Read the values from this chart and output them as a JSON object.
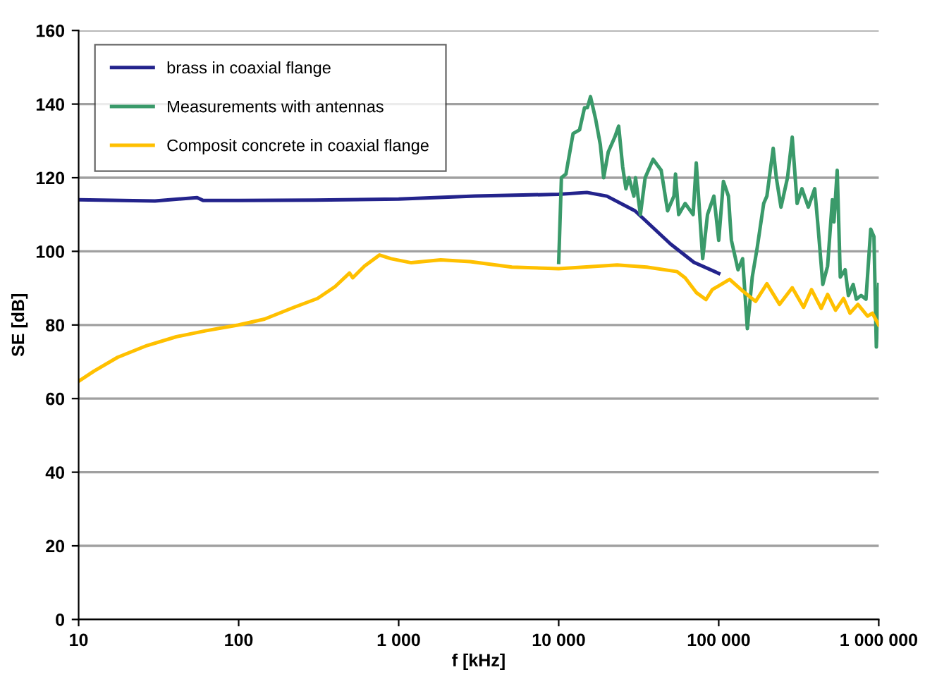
{
  "chart_data": {
    "type": "line",
    "xlabel": "f [kHz]",
    "ylabel": "SE [dB]",
    "log": "x",
    "grid": "y",
    "legend": "top left",
    "xlim": [
      10,
      1000000
    ],
    "ylim": [
      0,
      160
    ],
    "xticks": [
      10,
      100,
      {
        "value": 1000,
        "label": "1 000"
      },
      {
        "value": 10000,
        "label": "10 000"
      },
      {
        "value": 100000,
        "label": "100 000"
      },
      {
        "value": 1000000,
        "label": "1 000 000"
      }
    ],
    "yticks": [
      0,
      20,
      40,
      60,
      80,
      100,
      120,
      140,
      160
    ],
    "series": [
      {
        "name": "brass in coaxial flange",
        "color": "#23238c",
        "x": [
          10,
          30,
          55,
          60,
          100,
          300,
          1000,
          3000,
          10000,
          15000,
          20000,
          30000,
          50000,
          70000,
          100000
        ],
        "values": [
          114,
          113.7,
          114.6,
          113.8,
          113.8,
          113.9,
          114.2,
          115,
          115.5,
          116,
          115,
          111,
          102,
          97,
          94
        ]
      },
      {
        "name": "Measurements with antennas",
        "color": "#3a9a6a",
        "x": [
          10000,
          10400,
          11100,
          12300,
          13500,
          14500,
          15100,
          15800,
          17000,
          18200,
          19100,
          20400,
          22400,
          23700,
          25100,
          26300,
          27500,
          29500,
          30200,
          32400,
          34700,
          38900,
          43700,
          47900,
          52500,
          53700,
          56200,
          61700,
          69200,
          72400,
          79400,
          85100,
          93300,
          100000,
          107000,
          115000,
          120000,
          132000,
          141000,
          151000,
          162000,
          174000,
          191000,
          200000,
          219000,
          229000,
          245000,
          269000,
          288000,
          309000,
          331000,
          363000,
          398000,
          417000,
          447000,
          479000,
          513000,
          525000,
          550000,
          575000,
          617000,
          646000,
          692000,
          724000,
          776000,
          832000,
          891000,
          933000,
          966000,
          1000000
        ],
        "values": [
          97,
          120,
          121,
          132,
          133,
          139,
          139,
          142,
          136,
          129,
          120,
          127,
          131,
          134,
          123,
          117,
          120,
          115,
          120,
          110,
          120,
          125,
          122,
          111,
          115,
          121,
          110,
          113,
          110,
          124,
          98,
          110,
          115,
          103,
          119,
          115,
          103,
          95,
          98,
          79,
          93,
          101,
          113,
          115,
          128,
          120,
          112,
          120,
          131,
          113,
          117,
          112,
          117,
          107,
          91,
          96,
          114,
          108,
          122,
          93,
          95,
          88,
          91,
          87,
          88,
          87,
          106,
          104,
          74,
          91
        ]
      },
      {
        "name": "Composit concrete in coaxial flange",
        "color": "#ffc000",
        "x": [
          10,
          12.5,
          17.5,
          26.7,
          40.8,
          62,
          100,
          145,
          222,
          311,
          400,
          493,
          516,
          612,
          759,
          897,
          1200,
          1830,
          2800,
          5100,
          10000,
          23200,
          35500,
          54800,
          61700,
          72400,
          83200,
          91200,
          117000,
          138000,
          170000,
          200000,
          240000,
          288000,
          339000,
          380000,
          437000,
          479000,
          537000,
          603000,
          661000,
          741000,
          851000,
          912000,
          1000000
        ],
        "values": [
          64.7,
          67.5,
          71.2,
          74.4,
          76.8,
          78.4,
          80,
          81.6,
          84.8,
          87.2,
          90.4,
          94.1,
          92.8,
          96,
          99,
          98,
          96.9,
          97.7,
          97.2,
          95.7,
          95.3,
          96.3,
          95.7,
          94.5,
          92.8,
          88.8,
          86.9,
          89.6,
          92.4,
          89.6,
          86.4,
          91.2,
          85.6,
          90.1,
          84.8,
          89.6,
          84.5,
          88.3,
          84,
          87.2,
          83.2,
          85.6,
          82.4,
          83.2,
          80
        ]
      }
    ]
  }
}
